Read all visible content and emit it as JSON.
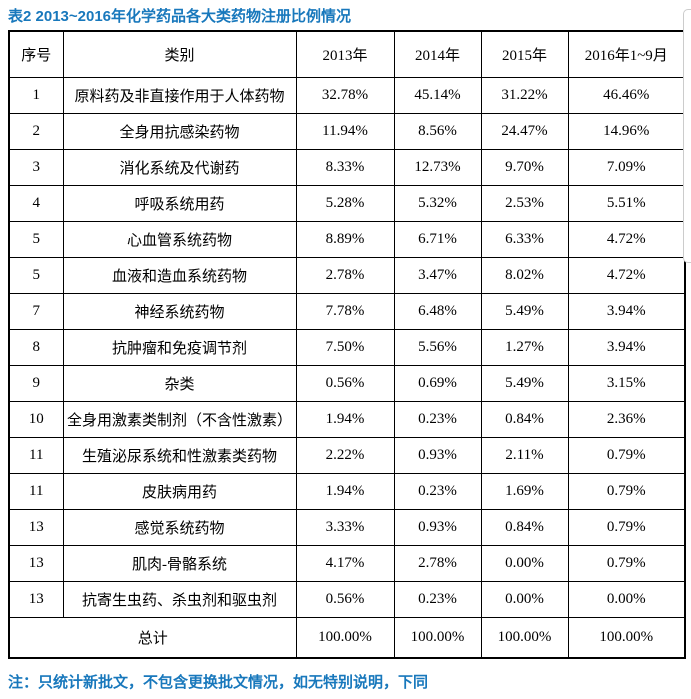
{
  "page": {
    "title": "表2 2013~2016年化学药品各大类药物注册比例情况",
    "note": "注：只统计新批文，不包含更换批文情况，如无特别说明，下同"
  },
  "colors": {
    "heading_blue": "#1878bc",
    "table_border": "#000000",
    "edge_artifact_gray": "#cccccc",
    "background": "#ffffff"
  },
  "table": {
    "headers": [
      "序号",
      "类别",
      "2013年",
      "2014年",
      "2015年",
      "2016年1~9月"
    ],
    "rows": [
      [
        "1",
        "原料药及非直接作用于人体药物",
        "32.78%",
        "45.14%",
        "31.22%",
        "46.46%"
      ],
      [
        "2",
        "全身用抗感染药物",
        "11.94%",
        "8.56%",
        "24.47%",
        "14.96%"
      ],
      [
        "3",
        "消化系统及代谢药",
        "8.33%",
        "12.73%",
        "9.70%",
        "7.09%"
      ],
      [
        "4",
        "呼吸系统用药",
        "5.28%",
        "5.32%",
        "2.53%",
        "5.51%"
      ],
      [
        "5",
        "心血管系统药物",
        "8.89%",
        "6.71%",
        "6.33%",
        "4.72%"
      ],
      [
        "5",
        "血液和造血系统药物",
        "2.78%",
        "3.47%",
        "8.02%",
        "4.72%"
      ],
      [
        "7",
        "神经系统药物",
        "7.78%",
        "6.48%",
        "5.49%",
        "3.94%"
      ],
      [
        "8",
        "抗肿瘤和免疫调节剂",
        "7.50%",
        "5.56%",
        "1.27%",
        "3.94%"
      ],
      [
        "9",
        "杂类",
        "0.56%",
        "0.69%",
        "5.49%",
        "3.15%"
      ],
      [
        "10",
        "全身用激素类制剂（不含性激素）",
        "1.94%",
        "0.23%",
        "0.84%",
        "2.36%"
      ],
      [
        "11",
        "生殖泌尿系统和性激素类药物",
        "2.22%",
        "0.93%",
        "2.11%",
        "0.79%"
      ],
      [
        "11",
        "皮肤病用药",
        "1.94%",
        "0.23%",
        "1.69%",
        "0.79%"
      ],
      [
        "13",
        "感觉系统药物",
        "3.33%",
        "0.93%",
        "0.84%",
        "0.79%"
      ],
      [
        "13",
        "肌肉-骨骼系统",
        "4.17%",
        "2.78%",
        "0.00%",
        "0.79%"
      ],
      [
        "13",
        "抗寄生虫药、杀虫剂和驱虫剂",
        "0.56%",
        "0.23%",
        "0.00%",
        "0.00%"
      ]
    ],
    "total_row": {
      "label": "总计",
      "values": [
        "100.00%",
        "100.00%",
        "100.00%",
        "100.00%"
      ]
    }
  }
}
